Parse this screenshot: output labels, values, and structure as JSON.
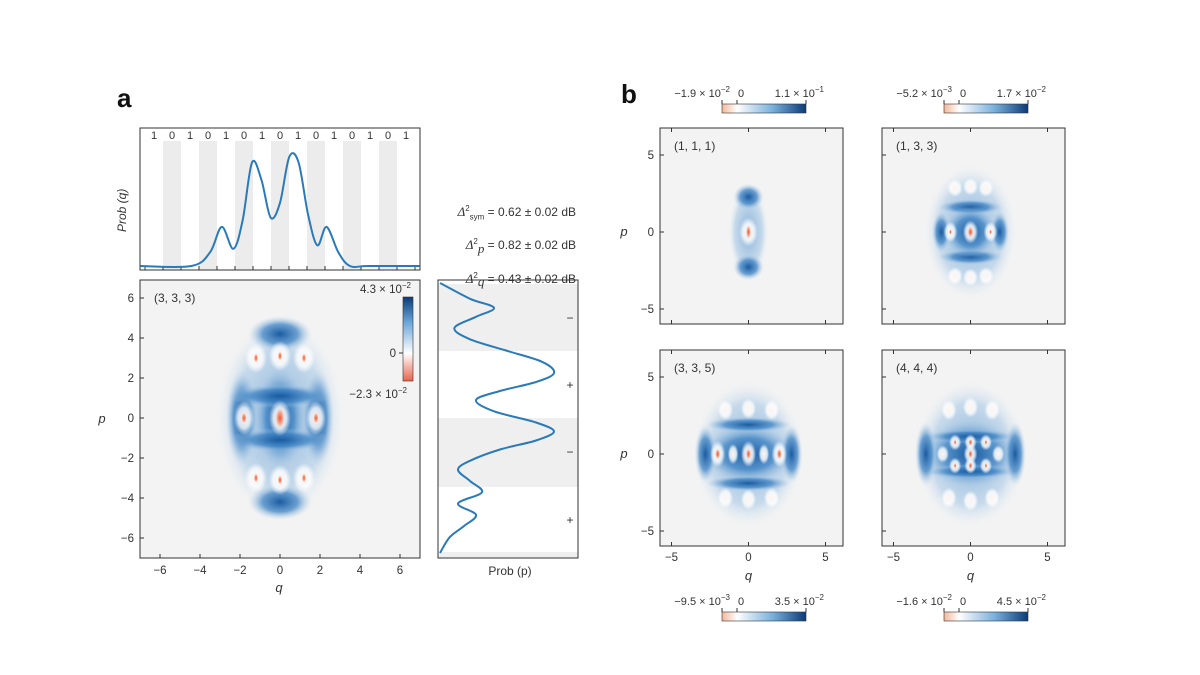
{
  "panel_a": {
    "label": "a",
    "top_plot": {
      "ylabel": "Prob (q)",
      "bits": [
        "1",
        "0",
        "1",
        "0",
        "1",
        "0",
        "1",
        "0",
        "1",
        "0",
        "1",
        "0",
        "1",
        "0",
        "1"
      ]
    },
    "main": {
      "state": "(3, 3, 3)",
      "xlabel": "q",
      "ylabel": "p",
      "xticks": [
        "−6",
        "−4",
        "−2",
        "0",
        "2",
        "4",
        "6"
      ],
      "yticks": [
        "6",
        "4",
        "2",
        "0",
        "−2",
        "−4",
        "−6"
      ],
      "colorbar": {
        "max": "4.3 × 10",
        "max_exp": "−2",
        "mid": "0",
        "min": "−2.3 × 10",
        "min_exp": "−2"
      }
    },
    "side_plot": {
      "xlabel": "Prob (p)",
      "signs": [
        "−",
        "+",
        "−",
        "+"
      ]
    },
    "deltas": [
      {
        "sub": "sym",
        "value": "= 0.62 ± 0.02 dB"
      },
      {
        "sub": "p",
        "value": "= 0.82 ± 0.02 dB"
      },
      {
        "sub": "q",
        "value": "= 0.43 ± 0.02 dB"
      }
    ]
  },
  "panel_b": {
    "label": "b",
    "xlabel": "q",
    "ylabel": "p",
    "ticks": [
      "−5",
      "0",
      "5"
    ],
    "subplots": [
      {
        "state": "(1, 1, 1)",
        "cbar": {
          "min": "−1.9 × 10",
          "min_exp": "−2",
          "zero": "0",
          "max": "1.1 × 10",
          "max_exp": "−1"
        }
      },
      {
        "state": "(1, 3, 3)",
        "cbar": {
          "min": "−5.2 × 10",
          "min_exp": "−3",
          "zero": "0",
          "max": "1.7 × 10",
          "max_exp": "−2"
        }
      },
      {
        "state": "(3, 3, 5)",
        "cbar": {
          "min": "−9.5 × 10",
          "min_exp": "−3",
          "zero": "0",
          "max": "3.5 × 10",
          "max_exp": "−2"
        }
      },
      {
        "state": "(4, 4, 4)",
        "cbar": {
          "min": "−1.6 × 10",
          "min_exp": "−2",
          "zero": "0",
          "max": "4.5 × 10",
          "max_exp": "−2"
        }
      }
    ]
  },
  "chart_data": [
    {
      "type": "line",
      "title": "",
      "ylabel": "Prob (q)",
      "xlim": [
        -6,
        6
      ],
      "series": [
        {
          "x": [
            -3.8,
            -3.0,
            -2.5,
            -2.0,
            -1.6,
            -1.2,
            -0.8,
            -0.4,
            0,
            0.4,
            0.8,
            1.2,
            1.6,
            2.0,
            2.5,
            3.0,
            3.8
          ],
          "values": [
            0.0,
            0.12,
            0.34,
            0.15,
            0.4,
            0.9,
            0.75,
            0.42,
            0.55,
            0.95,
            0.9,
            0.45,
            0.18,
            0.34,
            0.12,
            0.0,
            0.0
          ]
        }
      ]
    },
    {
      "type": "heatmap",
      "title": "(3, 3, 3)",
      "xlabel": "q",
      "ylabel": "p",
      "xlim": [
        -6,
        6
      ],
      "ylim": [
        -6,
        6
      ],
      "zlim": [
        -0.023,
        0.043
      ]
    },
    {
      "type": "line",
      "xlabel": "Prob (p)",
      "ylim": [
        -6,
        6
      ],
      "signs": [
        "−",
        "+",
        "−",
        "+"
      ]
    },
    {
      "type": "heatmap",
      "title": "(1, 1, 1)",
      "xlabel": "q",
      "ylabel": "p",
      "zlim": [
        -0.019,
        0.11
      ]
    },
    {
      "type": "heatmap",
      "title": "(1, 3, 3)",
      "xlabel": "q",
      "ylabel": "p",
      "zlim": [
        -0.0052,
        0.017
      ]
    },
    {
      "type": "heatmap",
      "title": "(3, 3, 5)",
      "xlabel": "q",
      "ylabel": "p",
      "zlim": [
        -0.0095,
        0.035
      ]
    },
    {
      "type": "heatmap",
      "title": "(4, 4, 4)",
      "xlabel": "q",
      "ylabel": "p",
      "zlim": [
        -0.016,
        0.045
      ]
    }
  ]
}
